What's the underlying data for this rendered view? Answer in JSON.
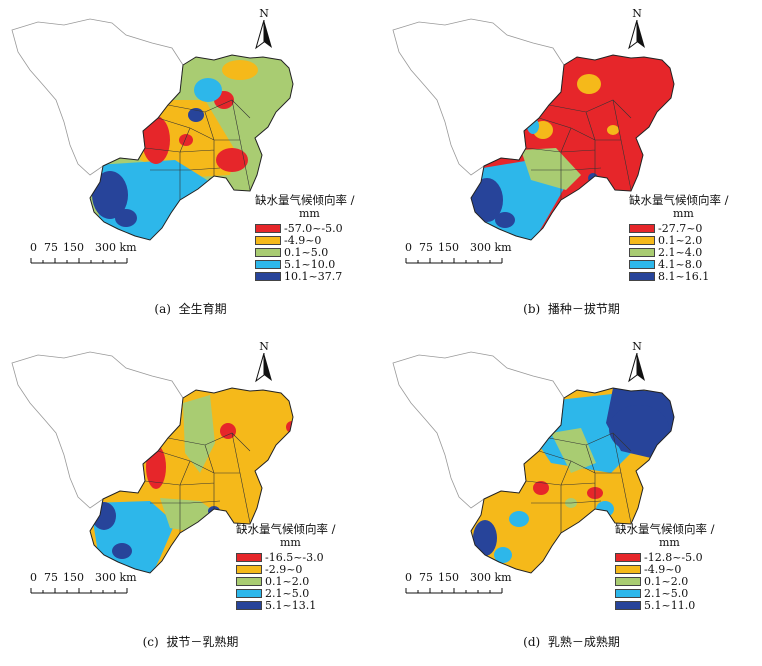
{
  "north_label": "N",
  "legend_title": "缺水量气候倾向率 /",
  "legend_unit": "mm",
  "scale_labels": [
    "0",
    "75",
    "150",
    "300 km"
  ],
  "colors": {
    "red": "#e6262a",
    "orange": "#f5b91a",
    "green": "#a9cc72",
    "cyan": "#2db7ea",
    "navy": "#27449a",
    "outline": "#999999",
    "border": "#222222"
  },
  "panels": [
    {
      "id": "a",
      "caption_prefix": "(a)",
      "caption_text": "全生育期",
      "legend": [
        "-57.0~-5.0",
        "-4.9~0",
        "0.1~5.0",
        "5.1~10.0",
        "10.1~37.7"
      ]
    },
    {
      "id": "b",
      "caption_prefix": "(b)",
      "caption_text": "播种－拔节期",
      "legend": [
        "-27.7~0",
        "0.1~2.0",
        "2.1~4.0",
        "4.1~8.0",
        "8.1~16.1"
      ]
    },
    {
      "id": "c",
      "caption_prefix": "(c)",
      "caption_text": "拔节－乳熟期",
      "legend": [
        "-16.5~-3.0",
        "-2.9~0",
        "0.1~2.0",
        "2.1~5.0",
        "5.1~13.1"
      ]
    },
    {
      "id": "d",
      "caption_prefix": "(d)",
      "caption_text": "乳熟－成熟期",
      "legend": [
        "-12.8~-5.0",
        "-4.9~0",
        "0.1~2.0",
        "2.1~5.0",
        "5.1~11.0"
      ]
    }
  ]
}
